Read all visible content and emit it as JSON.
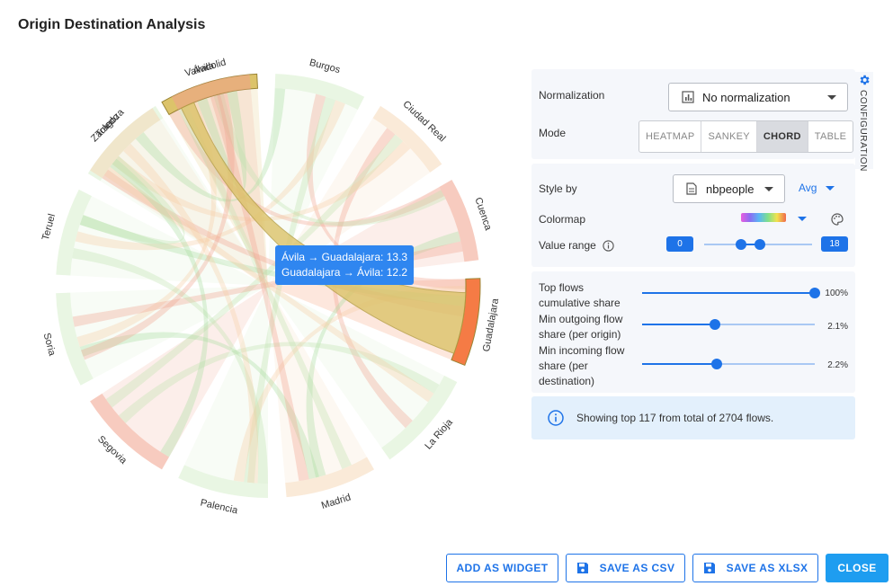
{
  "window": {
    "title": "Origin Destination Analysis"
  },
  "config_tab": {
    "label": "CONFIGURATION"
  },
  "normalization": {
    "label": "Normalization",
    "value": "No normalization"
  },
  "mode": {
    "label": "Mode",
    "options": [
      "HEATMAP",
      "SANKEY",
      "CHORD",
      "TABLE"
    ],
    "selected": "CHORD"
  },
  "style": {
    "label": "Style by",
    "value": "nbpeople",
    "aggregation": "Avg"
  },
  "colormap": {
    "label": "Colormap"
  },
  "value_range": {
    "label": "Value range",
    "min": "0",
    "max": "18",
    "low": 0.34,
    "high": 0.52
  },
  "filters": [
    {
      "label_lines": [
        "Top flows",
        "cumulative share"
      ],
      "value": "100%",
      "fraction": 1.0
    },
    {
      "label_lines": [
        "Min outgoing flow",
        "share (per origin)"
      ],
      "value": "2.1%",
      "fraction": 0.42
    },
    {
      "label_lines": [
        "Min incoming flow",
        "share (per",
        "destination)"
      ],
      "value": "2.2%",
      "fraction": 0.43
    }
  ],
  "info": {
    "text": "Showing top 117 from total of 2704 flows."
  },
  "tooltip": {
    "line1": "Ávila → Guadalajara: 13.3",
    "line2": "Guadalajara → Ávila: 12.2"
  },
  "buttons": {
    "add_widget": "ADD AS WIDGET",
    "save_csv": "SAVE AS CSV",
    "save_xlsx": "SAVE AS XLSX",
    "close": "CLOSE"
  },
  "chart_data": {
    "type": "chord",
    "nodes": [
      "Ávila",
      "Burgos",
      "Ciudad Real",
      "Cuenca",
      "Guadalajara",
      "La Rioja",
      "Madrid",
      "Palencia",
      "Segovia",
      "Soria",
      "Teruel",
      "Toledo",
      "Valladolid",
      "Zaragoza"
    ],
    "highlighted": [
      "Ávila",
      "Guadalajara"
    ],
    "highlighted_flows": [
      {
        "from": "Ávila",
        "to": "Guadalajara",
        "value": 13.3
      },
      {
        "from": "Guadalajara",
        "to": "Ávila",
        "value": 12.2
      }
    ],
    "colors": {
      "highlight_origin": "#dcc36a",
      "highlight_dest": "#f57b45",
      "high": "#f0a08a",
      "mid": "#f6d9b8",
      "low": "#d7efcc"
    }
  }
}
